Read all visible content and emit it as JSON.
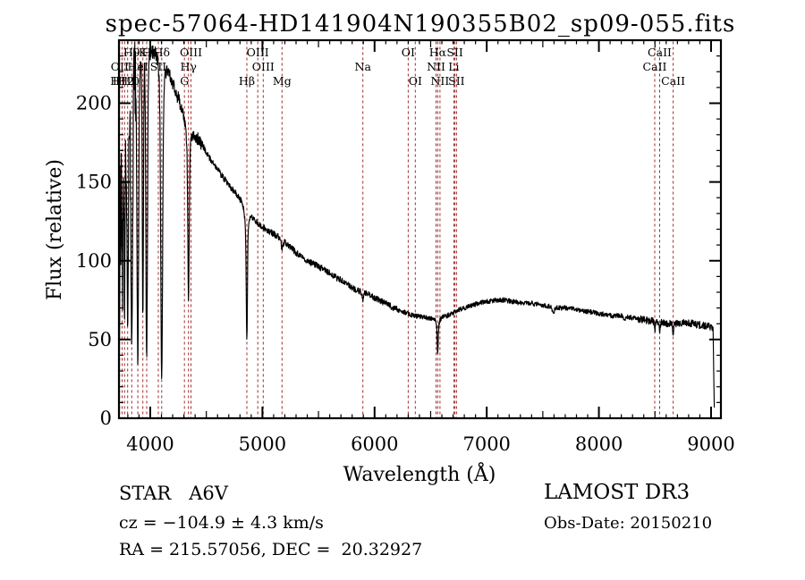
{
  "title": "spec-57064-HD141904N190355B02_sp09-055.fits",
  "chart_data": {
    "type": "line",
    "title": "spec-57064-HD141904N190355B02_sp09-055.fits",
    "xlabel": "Wavelength (Å)",
    "ylabel": "Flux (relative)",
    "xlim": [
      3721,
      9088
    ],
    "ylim": [
      0,
      240
    ],
    "xticks": [
      4000,
      5000,
      6000,
      7000,
      8000,
      9000
    ],
    "yticks": [
      0,
      50,
      100,
      150,
      200
    ],
    "x_minor_step": 100,
    "y_minor_step": 10,
    "grid": false,
    "curve_color": "#000000",
    "line_marker_color": "#9e2b2b",
    "spectral_lines": [
      {
        "label": "OII",
        "wavelength": 3727,
        "row": 2
      },
      {
        "label": "H12",
        "wavelength": 3750,
        "row": 3
      },
      {
        "label": "H11",
        "wavelength": 3771,
        "row": 3
      },
      {
        "label": "H10",
        "wavelength": 3798,
        "row": 3
      },
      {
        "label": "H9",
        "wavelength": 3835,
        "row": 1
      },
      {
        "label": "HeI",
        "wavelength": 3889,
        "row": 2
      },
      {
        "label": "K",
        "wavelength": 3934,
        "row": 1
      },
      {
        "label": "H",
        "wavelength": 3968,
        "row": 1
      },
      {
        "label": "SII",
        "wavelength": 4072,
        "row": 2
      },
      {
        "label": "Hδ",
        "wavelength": 4102,
        "row": 1
      },
      {
        "label": "G",
        "wavelength": 4305,
        "row": 3
      },
      {
        "label": "Hγ",
        "wavelength": 4341,
        "row": 2
      },
      {
        "label": "OIII",
        "wavelength": 4363,
        "row": 1
      },
      {
        "label": "Hβ",
        "wavelength": 4861,
        "row": 3
      },
      {
        "label": "OIII",
        "wavelength": 4959,
        "row": 1
      },
      {
        "label": "OIII",
        "wavelength": 5007,
        "row": 2
      },
      {
        "label": "Mg",
        "wavelength": 5175,
        "row": 3
      },
      {
        "label": "Na",
        "wavelength": 5896,
        "row": 2
      },
      {
        "label": "OI",
        "wavelength": 6300,
        "row": 1
      },
      {
        "label": "OI",
        "wavelength": 6363,
        "row": 3
      },
      {
        "label": "NII",
        "wavelength": 6548,
        "row": 2
      },
      {
        "label": "Hα",
        "wavelength": 6563,
        "row": 1
      },
      {
        "label": "NII",
        "wavelength": 6583,
        "row": 3
      },
      {
        "label": "Li",
        "wavelength": 6707,
        "row": 2
      },
      {
        "label": "SII",
        "wavelength": 6716,
        "row": 1
      },
      {
        "label": "SII",
        "wavelength": 6731,
        "row": 3
      },
      {
        "label": "CaII",
        "wavelength": 8498,
        "row": 2
      },
      {
        "label": "CaII",
        "wavelength": 8542,
        "row": 1
      },
      {
        "label": "CaII",
        "wavelength": 8662,
        "row": 3
      }
    ],
    "continuum_anchors": [
      [
        3721,
        150
      ],
      [
        3745,
        168
      ],
      [
        3780,
        184
      ],
      [
        3815,
        197
      ],
      [
        3850,
        207
      ],
      [
        3890,
        220
      ],
      [
        3930,
        227
      ],
      [
        3970,
        231
      ],
      [
        4010,
        232
      ],
      [
        4060,
        233
      ],
      [
        4110,
        230
      ],
      [
        4160,
        221
      ],
      [
        4210,
        211
      ],
      [
        4270,
        199
      ],
      [
        4330,
        189
      ],
      [
        4400,
        180
      ],
      [
        4470,
        172
      ],
      [
        4540,
        164
      ],
      [
        4610,
        157
      ],
      [
        4680,
        150
      ],
      [
        4750,
        144
      ],
      [
        4820,
        137
      ],
      [
        4890,
        129
      ],
      [
        4960,
        124
      ],
      [
        5030,
        120
      ],
      [
        5100,
        117
      ],
      [
        5170,
        114
      ],
      [
        5240,
        109
      ],
      [
        5320,
        104
      ],
      [
        5400,
        100
      ],
      [
        5480,
        97
      ],
      [
        5560,
        94
      ],
      [
        5640,
        90
      ],
      [
        5720,
        87
      ],
      [
        5800,
        83
      ],
      [
        5880,
        80
      ],
      [
        5960,
        78
      ],
      [
        6040,
        75
      ],
      [
        6120,
        72
      ],
      [
        6200,
        69
      ],
      [
        6280,
        67
      ],
      [
        6360,
        65
      ],
      [
        6440,
        64
      ],
      [
        6520,
        63
      ],
      [
        6600,
        64
      ],
      [
        6680,
        66
      ],
      [
        6760,
        69
      ],
      [
        6840,
        71
      ],
      [
        6920,
        73
      ],
      [
        7000,
        74
      ],
      [
        7080,
        75
      ],
      [
        7160,
        75
      ],
      [
        7240,
        74
      ],
      [
        7320,
        73
      ],
      [
        7400,
        73
      ],
      [
        7480,
        72
      ],
      [
        7560,
        71
      ],
      [
        7640,
        70
      ],
      [
        7720,
        70
      ],
      [
        7800,
        69
      ],
      [
        7880,
        68
      ],
      [
        7960,
        67
      ],
      [
        8040,
        66
      ],
      [
        8120,
        65
      ],
      [
        8200,
        65
      ],
      [
        8280,
        64
      ],
      [
        8360,
        63
      ],
      [
        8440,
        62
      ],
      [
        8520,
        61
      ],
      [
        8600,
        60
      ],
      [
        8680,
        60
      ],
      [
        8760,
        61
      ],
      [
        8840,
        60
      ],
      [
        8920,
        59
      ],
      [
        9000,
        58
      ],
      [
        9030,
        57
      ]
    ],
    "absorption_dips": [
      [
        3750,
        0.5,
        5
      ],
      [
        3771,
        0.6,
        5
      ],
      [
        3798,
        0.7,
        6
      ],
      [
        3835,
        0.78,
        7
      ],
      [
        3889,
        0.84,
        7
      ],
      [
        3934,
        0.72,
        5
      ],
      [
        3968,
        0.85,
        7
      ],
      [
        4102,
        0.87,
        8
      ],
      [
        4102,
        0.1,
        22
      ],
      [
        4341,
        0.55,
        6
      ],
      [
        4341,
        0.1,
        20
      ],
      [
        4861,
        0.58,
        5
      ],
      [
        4861,
        0.1,
        16
      ],
      [
        5175,
        0.05,
        9
      ],
      [
        5896,
        0.05,
        5
      ],
      [
        6563,
        0.3,
        4
      ],
      [
        6563,
        0.09,
        13
      ],
      [
        7594,
        0.05,
        9
      ],
      [
        8230,
        0.03,
        8
      ],
      [
        8498,
        0.09,
        4
      ],
      [
        8542,
        0.11,
        4
      ],
      [
        8662,
        0.11,
        4
      ]
    ],
    "noise_seed": 20150210
  },
  "footer": {
    "class_label": "STAR   A6V",
    "cz_label": "cz = −104.9 ± 4.3 km/s",
    "radec_label": "RA = 215.57056, DEC =  20.32927",
    "survey_label": "LAMOST DR3",
    "obsdate_label": "Obs-Date: 20150210"
  }
}
